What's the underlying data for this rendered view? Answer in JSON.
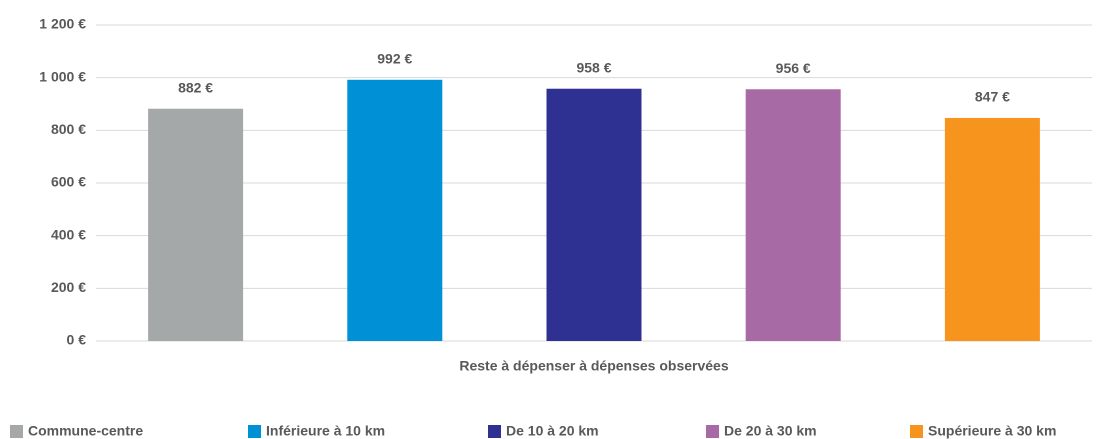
{
  "chart_data": {
    "type": "bar",
    "categories": [
      "Reste à dépenser à dépenses observées"
    ],
    "series": [
      {
        "name": "Commune-centre",
        "color": "#a5a8a9",
        "values": [
          882
        ],
        "value_labels": [
          "882 €"
        ]
      },
      {
        "name": "Inférieure à 10 km",
        "color": "#0090d6",
        "values": [
          992
        ],
        "value_labels": [
          "992 €"
        ]
      },
      {
        "name": "De 10 à 20 km",
        "color": "#2e3192",
        "values": [
          958
        ],
        "value_labels": [
          "958 €"
        ]
      },
      {
        "name": "De 20 à 30 km",
        "color": "#a86aa5",
        "values": [
          956
        ],
        "value_labels": [
          "956 €"
        ]
      },
      {
        "name": "Supérieure à 30 km",
        "color": "#f7941d",
        "values": [
          847
        ],
        "value_labels": [
          "847 €"
        ]
      }
    ],
    "ylim": [
      0,
      1200
    ],
    "yticks": [
      {
        "value": 0,
        "label": "0 €"
      },
      {
        "value": 200,
        "label": "200 €"
      },
      {
        "value": 400,
        "label": "400 €"
      },
      {
        "value": 600,
        "label": "600 €"
      },
      {
        "value": 800,
        "label": "800 €"
      },
      {
        "value": 1000,
        "label": "1 000 €"
      },
      {
        "value": 1200,
        "label": "1 200 €"
      }
    ],
    "grid": true,
    "legend": "bottom"
  }
}
